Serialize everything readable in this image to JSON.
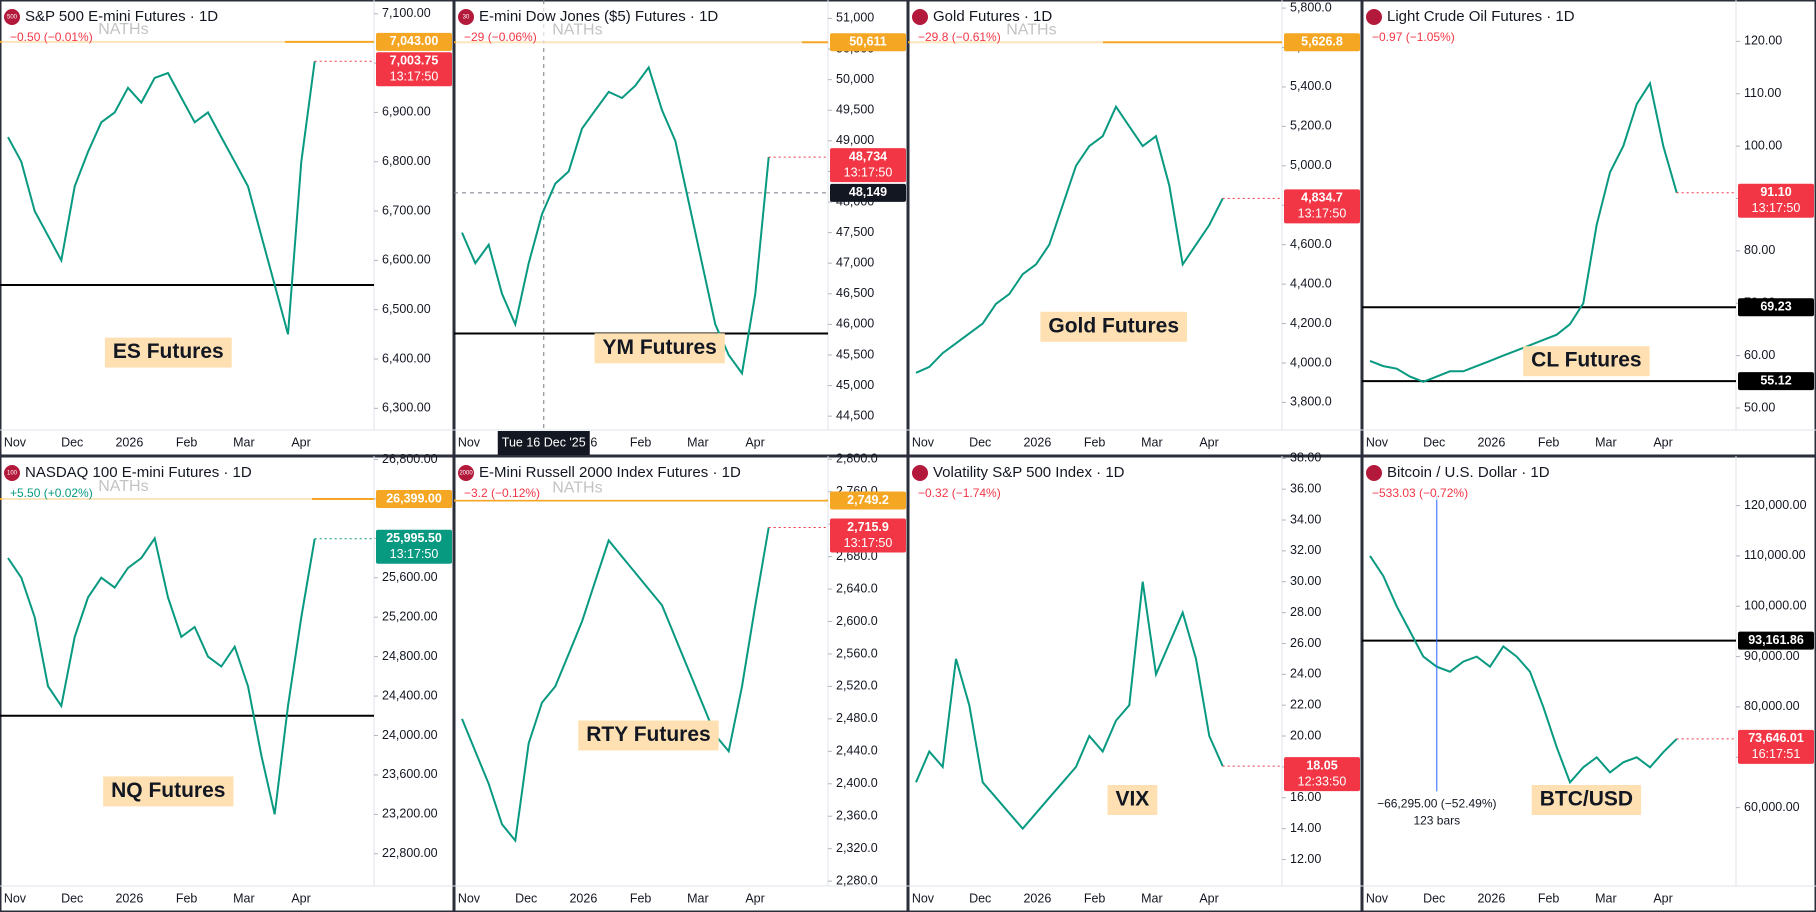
{
  "chart_data": [
    {
      "type": "line",
      "title": "S&P 500 E-mini Futures · 1D",
      "icon": "500",
      "change": "−0.50 (−0.01%)",
      "change_color": "#f23645",
      "x_labels": [
        "Nov",
        "Dec",
        "2026",
        "Feb",
        "Mar",
        "Apr"
      ],
      "color": "#089981",
      "values": [
        6850,
        6800,
        6700,
        6650,
        6600,
        6750,
        6820,
        6880,
        6900,
        6950,
        6920,
        6970,
        6980,
        6930,
        6880,
        6900,
        6850,
        6800,
        6750,
        6650,
        6550,
        6450,
        6800,
        7003.75
      ],
      "ylim": [
        6256,
        7128
      ],
      "yticks": [
        {
          "value": 6300,
          "label": "6,300.00"
        },
        {
          "value": 6400,
          "label": "6,400.00"
        },
        {
          "value": 6500,
          "label": "6,500.00"
        },
        {
          "value": 6600,
          "label": "6,600.00"
        },
        {
          "value": 6700,
          "label": "6,700.00"
        },
        {
          "value": 6800,
          "label": "6,800.00"
        },
        {
          "value": 6900,
          "label": "6,900.00"
        },
        {
          "value": 7000,
          "label": "7,000.00"
        },
        {
          "value": 7100,
          "label": "7,100.00"
        }
      ],
      "naths": "NATHs",
      "levels": [
        {
          "value": 7043,
          "label": "7,043.00",
          "color": "#f5a623"
        },
        {
          "value": 6550,
          "color": "#000000"
        }
      ],
      "last_price": {
        "value": 7003.75,
        "label": "7,003.75",
        "countdown": "13:17:50",
        "color": "#f23645"
      },
      "annotation": "ES Futures"
    },
    {
      "type": "line",
      "title": "E-mini Dow Jones ($5) Futures · 1D",
      "icon": "30",
      "change": "−29 (−0.06%)",
      "change_color": "#f23645",
      "x_labels": [
        "Nov",
        "Dec",
        "2026",
        "Feb",
        "Mar",
        "Apr"
      ],
      "color": "#089981",
      "values": [
        47500,
        47000,
        47300,
        46500,
        46000,
        47000,
        47800,
        48300,
        48500,
        49200,
        49500,
        49800,
        49700,
        49900,
        50200,
        49500,
        49000,
        48000,
        47000,
        46000,
        45500,
        45200,
        46500,
        48734
      ],
      "ylim": [
        44274,
        51301
      ],
      "yticks": [
        {
          "value": 44500,
          "label": "44,500"
        },
        {
          "value": 45000,
          "label": "45,000"
        },
        {
          "value": 45500,
          "label": "45,500"
        },
        {
          "value": 46000,
          "label": "46,000"
        },
        {
          "value": 46500,
          "label": "46,500"
        },
        {
          "value": 47000,
          "label": "47,000"
        },
        {
          "value": 47500,
          "label": "47,500"
        },
        {
          "value": 48000,
          "label": "48,000"
        },
        {
          "value": 48500,
          "label": "48,500"
        },
        {
          "value": 49000,
          "label": "49,000"
        },
        {
          "value": 49500,
          "label": "49,500"
        },
        {
          "value": 50000,
          "label": "50,000"
        },
        {
          "value": 50500,
          "label": "50,500"
        },
        {
          "value": 51000,
          "label": "51,000"
        }
      ],
      "naths": "NATHs",
      "levels": [
        {
          "value": 50611,
          "label": "50,611",
          "color": "#f5a623"
        },
        {
          "value": 45850,
          "color": "#000000"
        }
      ],
      "last_price": {
        "value": 48734,
        "label": "48,734",
        "countdown": "13:17:50",
        "color": "#f23645"
      },
      "crosshair": {
        "value": 48149,
        "label": "48,149",
        "date": "Tue 16 Dec '25"
      },
      "annotation": "YM Futures"
    },
    {
      "type": "line",
      "title": "Gold Futures · 1D",
      "change": "−29.8 (−0.61%)",
      "change_color": "#f23645",
      "x_labels": [
        "Nov",
        "Dec",
        "2026",
        "Feb",
        "Mar",
        "Apr"
      ],
      "color": "#089981",
      "values": [
        3950,
        3980,
        4050,
        4100,
        4150,
        4200,
        4300,
        4350,
        4450,
        4500,
        4600,
        4800,
        5000,
        5100,
        5150,
        5300,
        5200,
        5100,
        5150,
        4900,
        4500,
        4600,
        4700,
        4834.7
      ],
      "ylim": [
        3660,
        5841
      ],
      "yticks": [
        {
          "value": 3800,
          "label": "3,800.0"
        },
        {
          "value": 4000,
          "label": "4,000.0"
        },
        {
          "value": 4200,
          "label": "4,200.0"
        },
        {
          "value": 4400,
          "label": "4,400.0"
        },
        {
          "value": 4600,
          "label": "4,600.0"
        },
        {
          "value": 4800,
          "label": "4,800.0"
        },
        {
          "value": 5000,
          "label": "5,000.0"
        },
        {
          "value": 5200,
          "label": "5,200.0"
        },
        {
          "value": 5400,
          "label": "5,400.0"
        },
        {
          "value": 5600,
          "label": "5,600.0"
        },
        {
          "value": 5800,
          "label": "5,800.0"
        }
      ],
      "naths": "NATHs",
      "levels": [
        {
          "value": 5626.8,
          "label": "5,626.8",
          "color": "#f5a623"
        }
      ],
      "last_price": {
        "value": 4834.7,
        "label": "4,834.7",
        "countdown": "13:17:50",
        "color": "#f23645"
      },
      "annotation": "Gold Futures"
    },
    {
      "type": "line",
      "title": "Light Crude Oil Futures · 1D",
      "change": "−0.97 (−1.05%)",
      "change_color": "#f23645",
      "x_labels": [
        "Nov",
        "Dec",
        "2026",
        "Feb",
        "Mar",
        "Apr"
      ],
      "color": "#089981",
      "values": [
        59,
        58,
        57.5,
        56,
        55,
        56,
        57,
        57,
        58,
        59,
        60,
        61,
        62,
        63,
        64,
        66,
        70,
        85,
        95,
        100,
        108,
        112,
        100,
        91.1
      ],
      "ylim": [
        45.8,
        127.9
      ],
      "yticks": [
        {
          "value": 50,
          "label": "50.00"
        },
        {
          "value": 60,
          "label": "60.00"
        },
        {
          "value": 70,
          "label": "70.00"
        },
        {
          "value": 80,
          "label": "80.00"
        },
        {
          "value": 90,
          "label": "90.00"
        },
        {
          "value": 100,
          "label": "100.00"
        },
        {
          "value": 110,
          "label": "110.00"
        },
        {
          "value": 120,
          "label": "120.00"
        }
      ],
      "levels": [
        {
          "value": 69.23,
          "label": "69.23",
          "color": "#000000"
        },
        {
          "value": 55.12,
          "label": "55.12",
          "color": "#000000"
        }
      ],
      "last_price": {
        "value": 91.1,
        "label": "91.10",
        "countdown": "13:17:50",
        "color": "#f23645"
      },
      "annotation": "CL Futures"
    },
    {
      "type": "line",
      "title": "NASDAQ 100 E-mini Futures · 1D",
      "icon": "100",
      "change": "+5.50 (+0.02%)",
      "change_color": "#089981",
      "x_labels": [
        "Nov",
        "Dec",
        "2026",
        "Feb",
        "Mar",
        "Apr"
      ],
      "color": "#089981",
      "values": [
        25800,
        25600,
        25200,
        24500,
        24300,
        25000,
        25400,
        25600,
        25500,
        25700,
        25800,
        26000,
        25400,
        25000,
        25100,
        24800,
        24700,
        24900,
        24500,
        23800,
        23200,
        24300,
        25200,
        25995.5
      ],
      "ylim": [
        22473,
        26835
      ],
      "yticks": [
        {
          "value": 22800,
          "label": "22,800.00"
        },
        {
          "value": 23200,
          "label": "23,200.00"
        },
        {
          "value": 23600,
          "label": "23,600.00"
        },
        {
          "value": 24000,
          "label": "24,000.00"
        },
        {
          "value": 24400,
          "label": "24,400.00"
        },
        {
          "value": 24800,
          "label": "24,800.00"
        },
        {
          "value": 25200,
          "label": "25,200.00"
        },
        {
          "value": 25600,
          "label": "25,600.00"
        },
        {
          "value": 26000,
          "label": "26,000.00"
        },
        {
          "value": 26400,
          "label": "26,400.00"
        },
        {
          "value": 26800,
          "label": "26,800.00"
        }
      ],
      "naths": "NATHs",
      "levels": [
        {
          "value": 26399,
          "label": "26,399.00",
          "color": "#f5a623"
        },
        {
          "value": 24200,
          "color": "#000000"
        }
      ],
      "last_price": {
        "value": 25995.5,
        "label": "25,995.50",
        "countdown": "13:17:50",
        "color": "#089981"
      },
      "annotation": "NQ Futures"
    },
    {
      "type": "line",
      "title": "E-Mini Russell 2000 Index Futures · 1D",
      "icon": "2000",
      "change": "−3.2 (−0.12%)",
      "change_color": "#f23645",
      "x_labels": [
        "Nov",
        "Dec",
        "2026",
        "Feb",
        "Mar",
        "Apr"
      ],
      "color": "#089981",
      "values": [
        2480,
        2440,
        2400,
        2350,
        2330,
        2450,
        2500,
        2520,
        2560,
        2600,
        2650,
        2700,
        2680,
        2660,
        2640,
        2620,
        2580,
        2540,
        2500,
        2460,
        2440,
        2520,
        2620,
        2715.9
      ],
      "ylim": [
        2274,
        2804
      ],
      "yticks": [
        {
          "value": 2280,
          "label": "2,280.0"
        },
        {
          "value": 2320,
          "label": "2,320.0"
        },
        {
          "value": 2360,
          "label": "2,360.0"
        },
        {
          "value": 2400,
          "label": "2,400.0"
        },
        {
          "value": 2440,
          "label": "2,440.0"
        },
        {
          "value": 2480,
          "label": "2,480.0"
        },
        {
          "value": 2520,
          "label": "2,520.0"
        },
        {
          "value": 2560,
          "label": "2,560.0"
        },
        {
          "value": 2600,
          "label": "2,600.0"
        },
        {
          "value": 2640,
          "label": "2,640.0"
        },
        {
          "value": 2680,
          "label": "2,680.0"
        },
        {
          "value": 2720,
          "label": "2,720.0"
        },
        {
          "value": 2760,
          "label": "2,760.0"
        },
        {
          "value": 2800,
          "label": "2,800.0"
        }
      ],
      "naths": "NATHs",
      "levels": [
        {
          "value": 2749.2,
          "label": "2,749.2",
          "color": "#f5a623"
        }
      ],
      "last_price": {
        "value": 2715.9,
        "label": "2,715.9",
        "countdown": "13:17:50",
        "color": "#f23645"
      },
      "annotation": "RTY Futures"
    },
    {
      "type": "line",
      "title": "Volatility S&P 500 Index · 1D",
      "change": "−0.32 (−1.74%)",
      "change_color": "#f23645",
      "x_labels": [
        "Nov",
        "Dec",
        "2026",
        "Feb",
        "Mar",
        "Apr"
      ],
      "color": "#089981",
      "values": [
        17,
        19,
        18,
        25,
        22,
        17,
        16,
        15,
        14,
        15,
        16,
        17,
        18,
        20,
        19,
        21,
        22,
        30,
        24,
        26,
        28,
        25,
        20,
        18.05
      ],
      "ylim": [
        10.28,
        38.15
      ],
      "yticks": [
        {
          "value": 12,
          "label": "12.00"
        },
        {
          "value": 14,
          "label": "14.00"
        },
        {
          "value": 16,
          "label": "16.00"
        },
        {
          "value": 18,
          "label": "18.00"
        },
        {
          "value": 20,
          "label": "20.00"
        },
        {
          "value": 22,
          "label": "22.00"
        },
        {
          "value": 24,
          "label": "24.00"
        },
        {
          "value": 26,
          "label": "26.00"
        },
        {
          "value": 28,
          "label": "28.00"
        },
        {
          "value": 30,
          "label": "30.00"
        },
        {
          "value": 32,
          "label": "32.00"
        },
        {
          "value": 34,
          "label": "34.00"
        },
        {
          "value": 36,
          "label": "36.00"
        },
        {
          "value": 38,
          "label": "38.00"
        }
      ],
      "levels": [],
      "last_price": {
        "value": 18.05,
        "label": "18.05",
        "countdown": "12:33:50",
        "color": "#f23645"
      },
      "annotation": "VIX"
    },
    {
      "type": "line",
      "title": "Bitcoin / U.S. Dollar · 1D",
      "change": "−533.03 (−0.72%)",
      "change_color": "#f23645",
      "x_labels": [
        "Nov",
        "Dec",
        "2026",
        "Feb",
        "Mar",
        "Apr"
      ],
      "color": "#089981",
      "values": [
        110000,
        106000,
        100000,
        95000,
        90000,
        88000,
        87000,
        89000,
        90000,
        88000,
        92000,
        90000,
        87000,
        80000,
        72000,
        65000,
        68000,
        70000,
        67000,
        69000,
        70000,
        68000,
        71000,
        73646.01
      ],
      "ylim": [
        44428,
        129847
      ],
      "yticks": [
        {
          "value": 60000,
          "label": "60,000.00"
        },
        {
          "value": 70000,
          "label": "70,000.00"
        },
        {
          "value": 80000,
          "label": "80,000.00"
        },
        {
          "value": 90000,
          "label": "90,000.00"
        },
        {
          "value": 100000,
          "label": "100,000.00"
        },
        {
          "value": 110000,
          "label": "110,000.00"
        },
        {
          "value": 120000,
          "label": "120,000.00"
        }
      ],
      "levels": [
        {
          "value": 93161.86,
          "label": "93,161.86",
          "color": "#000000"
        }
      ],
      "last_price": {
        "value": 73646.01,
        "label": "73,646.01",
        "countdown": "16:17:51",
        "color": "#f23645"
      },
      "measure": {
        "label": "−66,295.00 (−52.49%)",
        "bars": "123 bars"
      },
      "annotation": "BTC/USD"
    }
  ]
}
